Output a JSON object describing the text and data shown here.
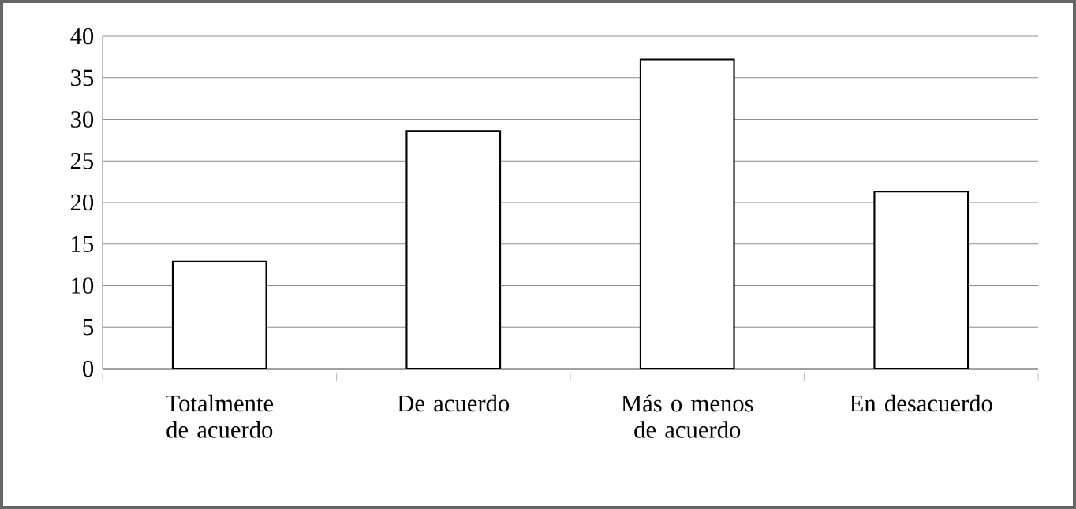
{
  "chart_data": {
    "type": "bar",
    "categories": [
      "Totalmente de acuerdo",
      "De acuerdo",
      "Más o menos de acuerdo",
      "En desacuerdo"
    ],
    "values": [
      12.9,
      28.6,
      37.2,
      21.3
    ],
    "color": "#ffffff",
    "ylim": [
      0,
      40
    ],
    "yticks": [
      0,
      5,
      10,
      15,
      20,
      25,
      30,
      35,
      40
    ],
    "grid": "y"
  }
}
